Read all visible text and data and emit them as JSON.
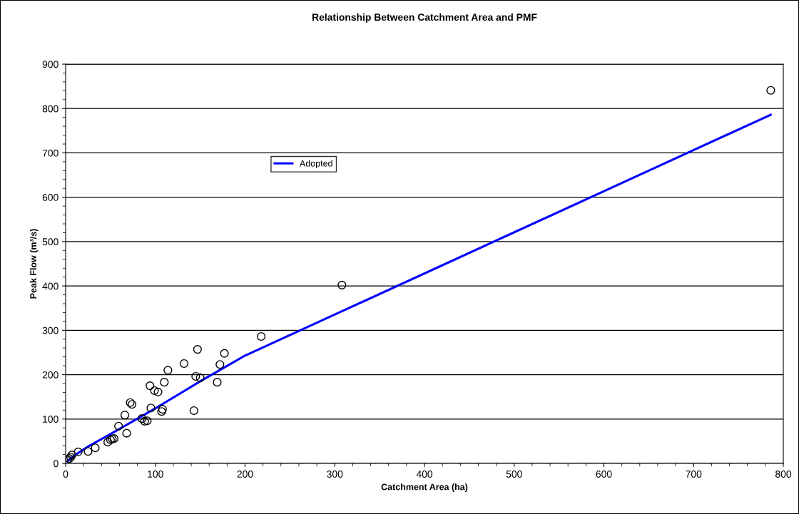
{
  "chart_data": {
    "type": "scatter",
    "title": "Relationship Between Catchment Area and PMF",
    "xlabel": "Catchment Area (ha)",
    "ylabel": "Peak Flow (m³/s)",
    "xlim": [
      0,
      800
    ],
    "xticks": [
      0,
      100,
      200,
      300,
      400,
      500,
      600,
      700,
      800
    ],
    "ylim": [
      0,
      900
    ],
    "yticks": [
      0,
      100,
      200,
      300,
      400,
      500,
      600,
      700,
      800,
      900
    ],
    "grid": "y",
    "legend": "top left",
    "marker": "circle",
    "series": [
      {
        "color": "#000000",
        "x": [
          2.4,
          4,
          5.6,
          7,
          14,
          25,
          33,
          47,
          50,
          52,
          54,
          59,
          66,
          68,
          72,
          74,
          85,
          88,
          91,
          94,
          95,
          99,
          103,
          107,
          108,
          110,
          114,
          132,
          143,
          145,
          147,
          150,
          169,
          172,
          177,
          218,
          308,
          786
        ],
        "values": [
          8,
          11,
          14,
          19,
          26,
          27,
          35,
          48,
          53,
          55,
          56,
          84,
          109,
          68,
          137,
          133,
          101,
          95,
          96,
          175,
          125,
          164,
          161,
          117,
          122,
          183,
          210,
          225,
          119,
          196,
          257,
          193,
          183,
          223,
          248,
          286,
          402,
          841
        ]
      },
      {
        "type": "line",
        "name": "Adopted",
        "color": "#0000ff",
        "marker": "none",
        "line_style": "solid",
        "x": [
          2,
          10,
          25,
          50,
          100,
          150,
          200,
          307,
          786
        ],
        "values": [
          5,
          18,
          38,
          66,
          124,
          185,
          243,
          342,
          786
        ]
      }
    ]
  }
}
